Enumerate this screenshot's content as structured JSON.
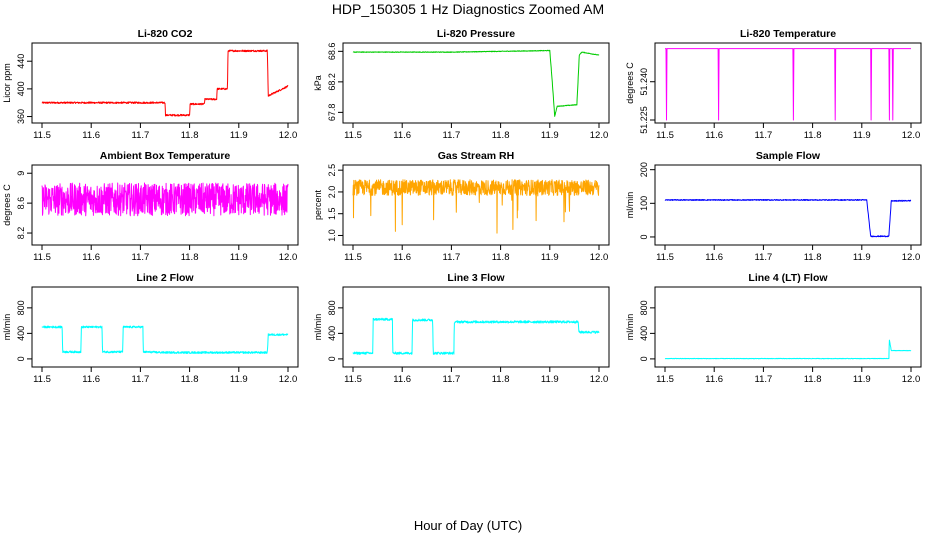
{
  "title": "HDP_150305  1 Hz Diagnostics Zoomed AM",
  "xlabel": "Hour of Day (UTC)",
  "chart_data": [
    {
      "type": "line",
      "title": "Li-820 CO2",
      "ylabel": "Licor ppm",
      "color": "#ff0000",
      "xlim": [
        11.5,
        12.0
      ],
      "xticks": [
        "11.5",
        "11.6",
        "11.7",
        "11.8",
        "11.9",
        "12.0"
      ],
      "ylim": [
        355,
        462
      ],
      "yticks": [
        360,
        400,
        440
      ],
      "series": [
        {
          "x": [
            11.5,
            11.75,
            11.751,
            11.8,
            11.801,
            11.83,
            11.831,
            11.855,
            11.856,
            11.877,
            11.878,
            11.958,
            11.96,
            12.0
          ],
          "y": [
            380,
            380,
            362,
            362,
            378,
            378,
            385,
            385,
            400,
            400,
            455,
            455,
            390,
            404
          ],
          "noise": 1.2
        }
      ]
    },
    {
      "type": "line",
      "title": "Li-820 Pressure",
      "ylabel": "kPa",
      "color": "#00cc00",
      "xlim": [
        11.5,
        12.0
      ],
      "xticks": [
        "11.5",
        "11.6",
        "11.7",
        "11.8",
        "11.9",
        "12.0"
      ],
      "ylim": [
        67.7,
        68.67
      ],
      "yticks": [
        67.8,
        68.2,
        68.6
      ],
      "series": [
        {
          "x": [
            11.5,
            11.7,
            11.9,
            11.905,
            11.91,
            11.915,
            11.955,
            11.96,
            11.965,
            12.0
          ],
          "y": [
            68.59,
            68.59,
            68.61,
            68.2,
            67.75,
            67.88,
            67.9,
            68.55,
            68.59,
            68.55
          ],
          "noise": 0.004
        }
      ]
    },
    {
      "type": "line",
      "title": "Li-820 Temperature",
      "ylabel": "degrees C",
      "color": "#ff00ff",
      "xlim": [
        11.5,
        12.0
      ],
      "xticks": [
        "11.5",
        "11.6",
        "11.7",
        "11.8",
        "11.9",
        "12.0"
      ],
      "ylim": [
        51.225,
        51.254
      ],
      "yticks": [
        51.225,
        51.24
      ],
      "ytick_labels": [
        "51.225",
        "51.240"
      ],
      "series": [
        {
          "x": [
            11.5,
            11.502,
            11.503,
            11.504,
            11.608,
            11.609,
            11.61,
            11.76,
            11.761,
            11.762,
            11.845,
            11.846,
            11.847,
            11.918,
            11.919,
            11.92,
            11.955,
            11.956,
            11.957,
            11.962,
            11.963,
            11.964,
            12.0
          ],
          "y": [
            51.253,
            51.253,
            51.225,
            51.253,
            51.253,
            51.225,
            51.253,
            51.253,
            51.225,
            51.253,
            51.253,
            51.225,
            51.253,
            51.253,
            51.225,
            51.253,
            51.253,
            51.225,
            51.253,
            51.253,
            51.225,
            51.253,
            51.253
          ],
          "noise": 0
        }
      ]
    },
    {
      "type": "line",
      "title": "Ambient Box Temperature",
      "ylabel": "degrees C",
      "color": "#ff00ff",
      "xlim": [
        11.5,
        12.0
      ],
      "xticks": [
        "11.5",
        "11.6",
        "11.7",
        "11.8",
        "11.9",
        "12.0"
      ],
      "ylim": [
        8.08,
        9.07
      ],
      "yticks": [
        8.2,
        8.6,
        9.0
      ],
      "series": [
        {
          "x": [
            11.5,
            12.0
          ],
          "y": [
            8.65,
            8.65
          ],
          "noise": 0.22
        }
      ]
    },
    {
      "type": "line",
      "title": "Gas Stream RH",
      "ylabel": "percent",
      "color": "#ffa500",
      "xlim": [
        11.5,
        12.0
      ],
      "xticks": [
        "11.5",
        "11.6",
        "11.7",
        "11.8",
        "11.9",
        "12.0"
      ],
      "ylim": [
        0.85,
        2.55
      ],
      "yticks": [
        1.0,
        1.5,
        2.0,
        2.5
      ],
      "ytick_labels": [
        "1.0",
        "1.5",
        "2.0",
        "2.5"
      ],
      "series": [
        {
          "x": [
            11.5,
            12.0
          ],
          "y": [
            2.1,
            2.1
          ],
          "noise": 0.18
        }
      ]
    },
    {
      "type": "line",
      "title": "Sample Flow",
      "ylabel": "ml/min",
      "color": "#0000ff",
      "xlim": [
        11.5,
        12.0
      ],
      "xticks": [
        "11.5",
        "11.6",
        "11.7",
        "11.8",
        "11.9",
        "12.0"
      ],
      "ylim": [
        -15,
        205
      ],
      "yticks": [
        0,
        100,
        200
      ],
      "series": [
        {
          "x": [
            11.5,
            11.91,
            11.918,
            11.955,
            11.96,
            11.963,
            12.0
          ],
          "y": [
            110,
            110,
            2,
            2,
            108,
            107,
            108
          ],
          "noise": 1.5
        }
      ]
    },
    {
      "type": "line",
      "title": "Line 2 Flow",
      "ylabel": "ml/min",
      "color": "#00ffff",
      "xlim": [
        11.5,
        12.0
      ],
      "xticks": [
        "11.5",
        "11.6",
        "11.7",
        "11.8",
        "11.9",
        "12.0"
      ],
      "ylim": [
        -80,
        1080
      ],
      "yticks": [
        0,
        400,
        800
      ],
      "series": [
        {
          "x": [
            11.5,
            11.541,
            11.542,
            11.579,
            11.58,
            11.622,
            11.623,
            11.664,
            11.665,
            11.705,
            11.706,
            11.75,
            11.958,
            11.96,
            12.0
          ],
          "y": [
            500,
            500,
            110,
            110,
            500,
            500,
            110,
            110,
            500,
            500,
            110,
            100,
            100,
            380,
            380
          ],
          "noise": 15
        }
      ]
    },
    {
      "type": "line",
      "title": "Line 3 Flow",
      "ylabel": "ml/min",
      "color": "#00ffff",
      "xlim": [
        11.5,
        12.0
      ],
      "xticks": [
        "11.5",
        "11.6",
        "11.7",
        "11.8",
        "11.9",
        "12.0"
      ],
      "ylim": [
        -80,
        1080
      ],
      "yticks": [
        0,
        400,
        800
      ],
      "series": [
        {
          "x": [
            11.5,
            11.54,
            11.541,
            11.58,
            11.581,
            11.62,
            11.621,
            11.662,
            11.663,
            11.705,
            11.706,
            11.958,
            11.959,
            12.0
          ],
          "y": [
            90,
            90,
            620,
            620,
            90,
            90,
            610,
            610,
            90,
            90,
            580,
            580,
            420,
            420
          ],
          "noise": 18
        }
      ]
    },
    {
      "type": "line",
      "title": "Line 4 (LT) Flow",
      "ylabel": "ml/min",
      "color": "#00ffff",
      "xlim": [
        11.5,
        12.0
      ],
      "xticks": [
        "11.5",
        "11.6",
        "11.7",
        "11.8",
        "11.9",
        "12.0"
      ],
      "ylim": [
        -80,
        1080
      ],
      "yticks": [
        0,
        400,
        800
      ],
      "series": [
        {
          "x": [
            11.5,
            11.955,
            11.956,
            11.96,
            11.961,
            12.0
          ],
          "y": [
            5,
            5,
            300,
            130,
            130,
            130
          ],
          "noise": 3
        }
      ]
    }
  ]
}
